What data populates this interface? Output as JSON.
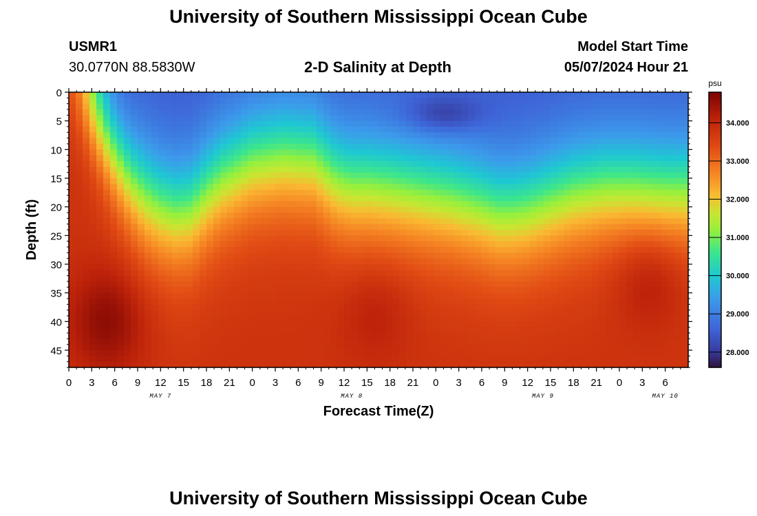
{
  "header": {
    "title": "University of Southern Mississippi Ocean Cube",
    "station_id": "USMR1",
    "station_coords": "30.0770N  88.5830W",
    "plot_title": "2-D Salinity at Depth",
    "model_start_label": "Model Start Time",
    "model_start_value": "05/07/2024 Hour 21"
  },
  "footer": {
    "title": "University of Southern Mississippi Ocean Cube"
  },
  "chart_data": {
    "type": "heatmap",
    "title": "2-D Salinity at Depth",
    "xlabel": "Forecast Time(Z)",
    "ylabel": "Depth (ft)",
    "x_range_hours": [
      0,
      81
    ],
    "y_range_ft": [
      0,
      48
    ],
    "x_ticks": [
      "0",
      "3",
      "6",
      "9",
      "12",
      "15",
      "18",
      "21",
      "0",
      "3",
      "6",
      "9",
      "12",
      "15",
      "18",
      "21",
      "0",
      "3",
      "6",
      "9",
      "12",
      "15",
      "18",
      "21",
      "0",
      "3",
      "6"
    ],
    "y_ticks": [
      "0",
      "5",
      "10",
      "15",
      "20",
      "25",
      "30",
      "35",
      "40",
      "45"
    ],
    "date_labels": [
      {
        "label": "MAY 7",
        "hour": 12
      },
      {
        "label": "MAY 8",
        "hour": 37
      },
      {
        "label": "MAY 9",
        "hour": 62
      },
      {
        "label": "MAY 10",
        "hour": 78
      }
    ],
    "colorbar": {
      "unit": "psu",
      "min": 27.6,
      "max": 34.8,
      "ticks": [
        "28.000",
        "29.000",
        "30.000",
        "31.000",
        "32.000",
        "33.000",
        "34.000"
      ],
      "tick_values": [
        28,
        29,
        30,
        31,
        32,
        33,
        34
      ]
    },
    "halocline": {
      "hours": [
        0,
        2,
        4,
        6,
        8,
        10,
        12,
        14,
        16,
        18,
        20,
        24,
        28,
        32,
        35,
        37,
        39,
        42,
        46,
        50,
        54,
        56,
        58,
        60,
        62,
        66,
        70,
        74,
        78,
        81
      ],
      "depth_ft": [
        2,
        4,
        7,
        11,
        15,
        18,
        20,
        21,
        20.5,
        17.5,
        15,
        12,
        11,
        11.5,
        15,
        16,
        16,
        16.5,
        17.5,
        18.5,
        20,
        21,
        21,
        20.5,
        19.5,
        17.5,
        16.5,
        16.5,
        17,
        17
      ]
    },
    "deep_salinity_psu": 33.8,
    "surface_salinity_psu": 28.4,
    "features": [
      {
        "name": "low-salinity core",
        "hour": 49,
        "depth_ft": 4,
        "salinity_psu": 27.7
      },
      {
        "name": "high-salinity core",
        "hour": 5,
        "depth_ft": 40,
        "salinity_psu": 34.6
      },
      {
        "name": "high-salinity core",
        "hour": 40,
        "depth_ft": 38,
        "salinity_psu": 34.2
      },
      {
        "name": "high-salinity core",
        "hour": 76,
        "depth_ft": 32,
        "salinity_psu": 34.4
      }
    ]
  }
}
